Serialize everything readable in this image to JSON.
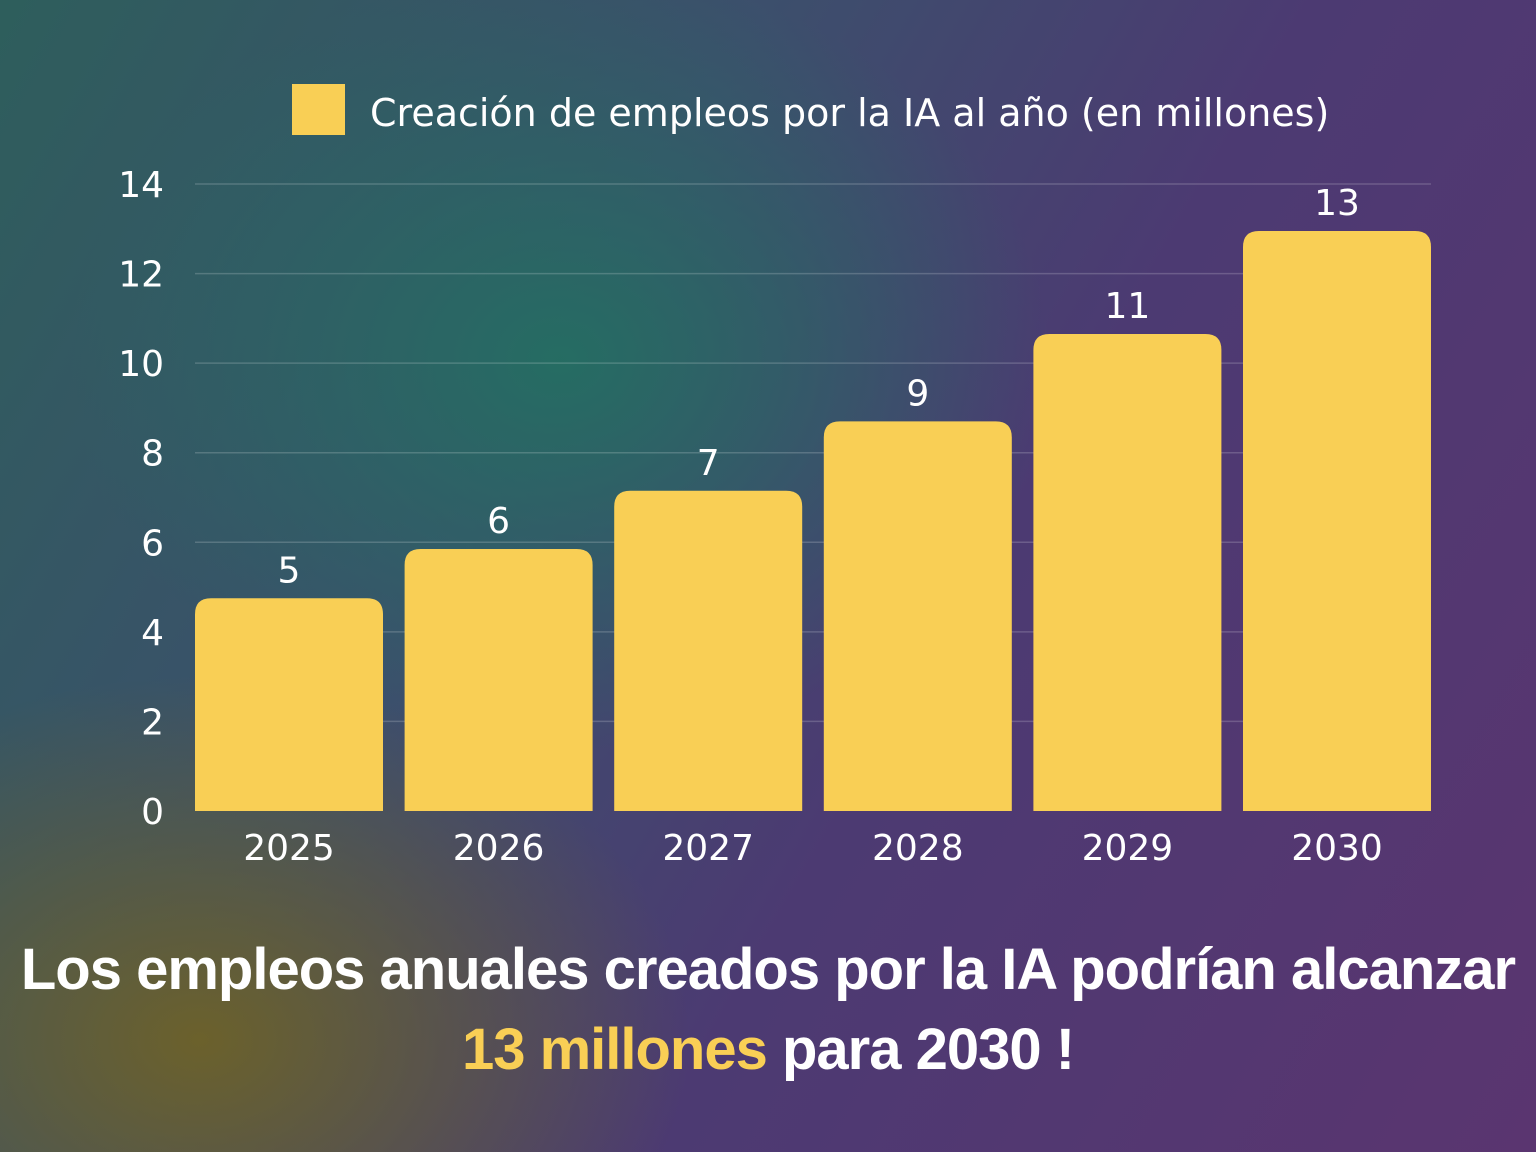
{
  "colors": {
    "bar": "#f9cf55",
    "grid": "rgba(255,255,255,0.18)",
    "text": "#ffffff",
    "highlight": "#f9cf55"
  },
  "chart_data": {
    "type": "bar",
    "title": "",
    "xlabel": "",
    "ylabel": "",
    "legend_position": "top",
    "grid": true,
    "ylim": [
      0,
      14
    ],
    "yticks": [
      "0",
      "2",
      "4",
      "6",
      "8",
      "10",
      "12",
      "14"
    ],
    "categories": [
      "2025",
      "2026",
      "2027",
      "2028",
      "2029",
      "2030"
    ],
    "series": [
      {
        "name": "Creación de empleos por la IA al año (en millones)",
        "values": [
          4.75,
          5.85,
          7.15,
          8.7,
          10.65,
          12.95
        ],
        "labels": [
          "5",
          "6",
          "7",
          "9",
          "11",
          "13"
        ]
      }
    ]
  },
  "caption": {
    "line1": "Los empleos anuales creados por la IA podrían alcanzar",
    "highlight": "13 millones",
    "line2_rest": " para 2030 !"
  }
}
